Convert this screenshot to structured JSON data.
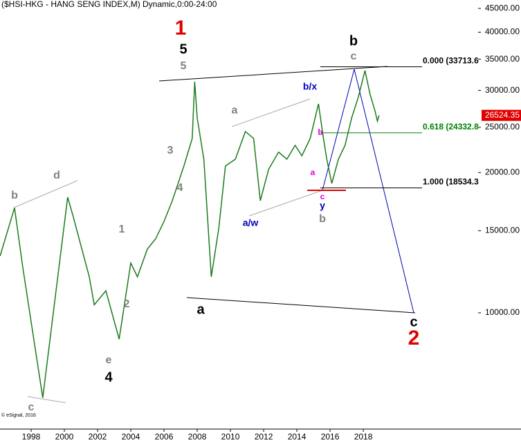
{
  "chart_data": {
    "type": "line",
    "title": "($HSI-HKG - HANG SENG INDEX,M) Dynamic,0:00-24:00",
    "credit": "© eSignal, 2016",
    "log_scale": true,
    "color": "#1b7a1b",
    "xlim": [
      1996.125,
      2025.08
    ],
    "ylim": [
      5630,
      46900
    ],
    "xticks": [
      1998,
      2000,
      2002,
      2004,
      2006,
      2008,
      2010,
      2012,
      2014,
      2016,
      2018
    ],
    "yticks": [
      {
        "value": 10000,
        "label": "10000.00"
      },
      {
        "value": 15000,
        "label": "15000.00"
      },
      {
        "value": 20000,
        "label": "20000.00"
      },
      {
        "value": 25000,
        "label": "25000.00"
      },
      {
        "value": 30000,
        "label": "30000.00"
      },
      {
        "value": 35000,
        "label": "35000.00"
      },
      {
        "value": 40000,
        "label": "40000.00"
      },
      {
        "value": 45000,
        "label": "45000.00"
      }
    ],
    "series": [
      {
        "name": "$HSI-HKG",
        "x": [
          1996.13,
          1997.0,
          1997.5,
          1998.7,
          1999.5,
          2000.2,
          2000.5,
          2001.5,
          2001.8,
          2002.5,
          2003.3,
          2004.0,
          2004.4,
          2005.0,
          2005.5,
          2006.0,
          2006.5,
          2007.2,
          2007.7,
          2007.85,
          2008.0,
          2008.4,
          2008.85,
          2009.3,
          2009.7,
          2010.3,
          2010.9,
          2011.4,
          2011.8,
          2012.3,
          2012.9,
          2013.4,
          2013.9,
          2014.3,
          2014.8,
          2015.3,
          2015.6,
          2015.8,
          2016.1,
          2016.5,
          2016.9,
          2017.3,
          2017.7,
          2018.1,
          2018.4,
          2018.7,
          2018.85,
          2018.95
        ],
        "values": [
          13240,
          16800,
          12500,
          6570,
          11150,
          17700,
          16250,
          11950,
          10400,
          11150,
          8780,
          12790,
          11950,
          13700,
          14420,
          15700,
          17400,
          20650,
          23660,
          31330,
          26220,
          21360,
          11950,
          15180,
          20650,
          21360,
          24480,
          23660,
          17400,
          20310,
          22120,
          21360,
          22870,
          21720,
          23660,
          28080,
          23660,
          21360,
          18950,
          21360,
          22870,
          26220,
          29030,
          33100,
          29500,
          27130,
          25780,
          26524.35
        ]
      }
    ],
    "fib_levels": [
      {
        "value": 33713.6,
        "label": "0.000 (33713.6",
        "color": "#000000"
      },
      {
        "value": 24332.8,
        "label": "0.618 (24332.8",
        "color": "#008000"
      },
      {
        "value": 18534.3,
        "label": "1.000 (18534.3",
        "color": "#000000"
      }
    ],
    "annotations": [
      {
        "text": "1",
        "color": "#e00000"
      },
      {
        "text": "5",
        "color": "#000000"
      },
      {
        "text": "5",
        "color": "#808080"
      },
      {
        "text": "b",
        "color": "#000000"
      },
      {
        "text": "c",
        "color": "#808080"
      },
      {
        "text": "b/x",
        "color": "#0000c0"
      },
      {
        "text": "a",
        "color": "#808080"
      },
      {
        "text": "a/w",
        "color": "#0000c0"
      },
      {
        "text": "b",
        "color": "#e000e0"
      },
      {
        "text": "a",
        "color": "#e000e0"
      },
      {
        "text": "c",
        "color": "#e000e0"
      },
      {
        "text": "y",
        "color": "#0000c0"
      },
      {
        "text": "b",
        "color": "#808080"
      },
      {
        "text": "3",
        "color": "#808080"
      },
      {
        "text": "4",
        "color": "#808080"
      },
      {
        "text": "1",
        "color": "#808080"
      },
      {
        "text": "2",
        "color": "#808080"
      },
      {
        "text": "b",
        "color": "#808080"
      },
      {
        "text": "d",
        "color": "#808080"
      },
      {
        "text": "e",
        "color": "#808080"
      },
      {
        "text": "4",
        "color": "#000000"
      },
      {
        "text": "c",
        "color": "#808080"
      },
      {
        "text": "a",
        "color": "#000000"
      },
      {
        "text": "c",
        "color": "#000000"
      },
      {
        "text": "2",
        "color": "#e00000"
      }
    ]
  }
}
